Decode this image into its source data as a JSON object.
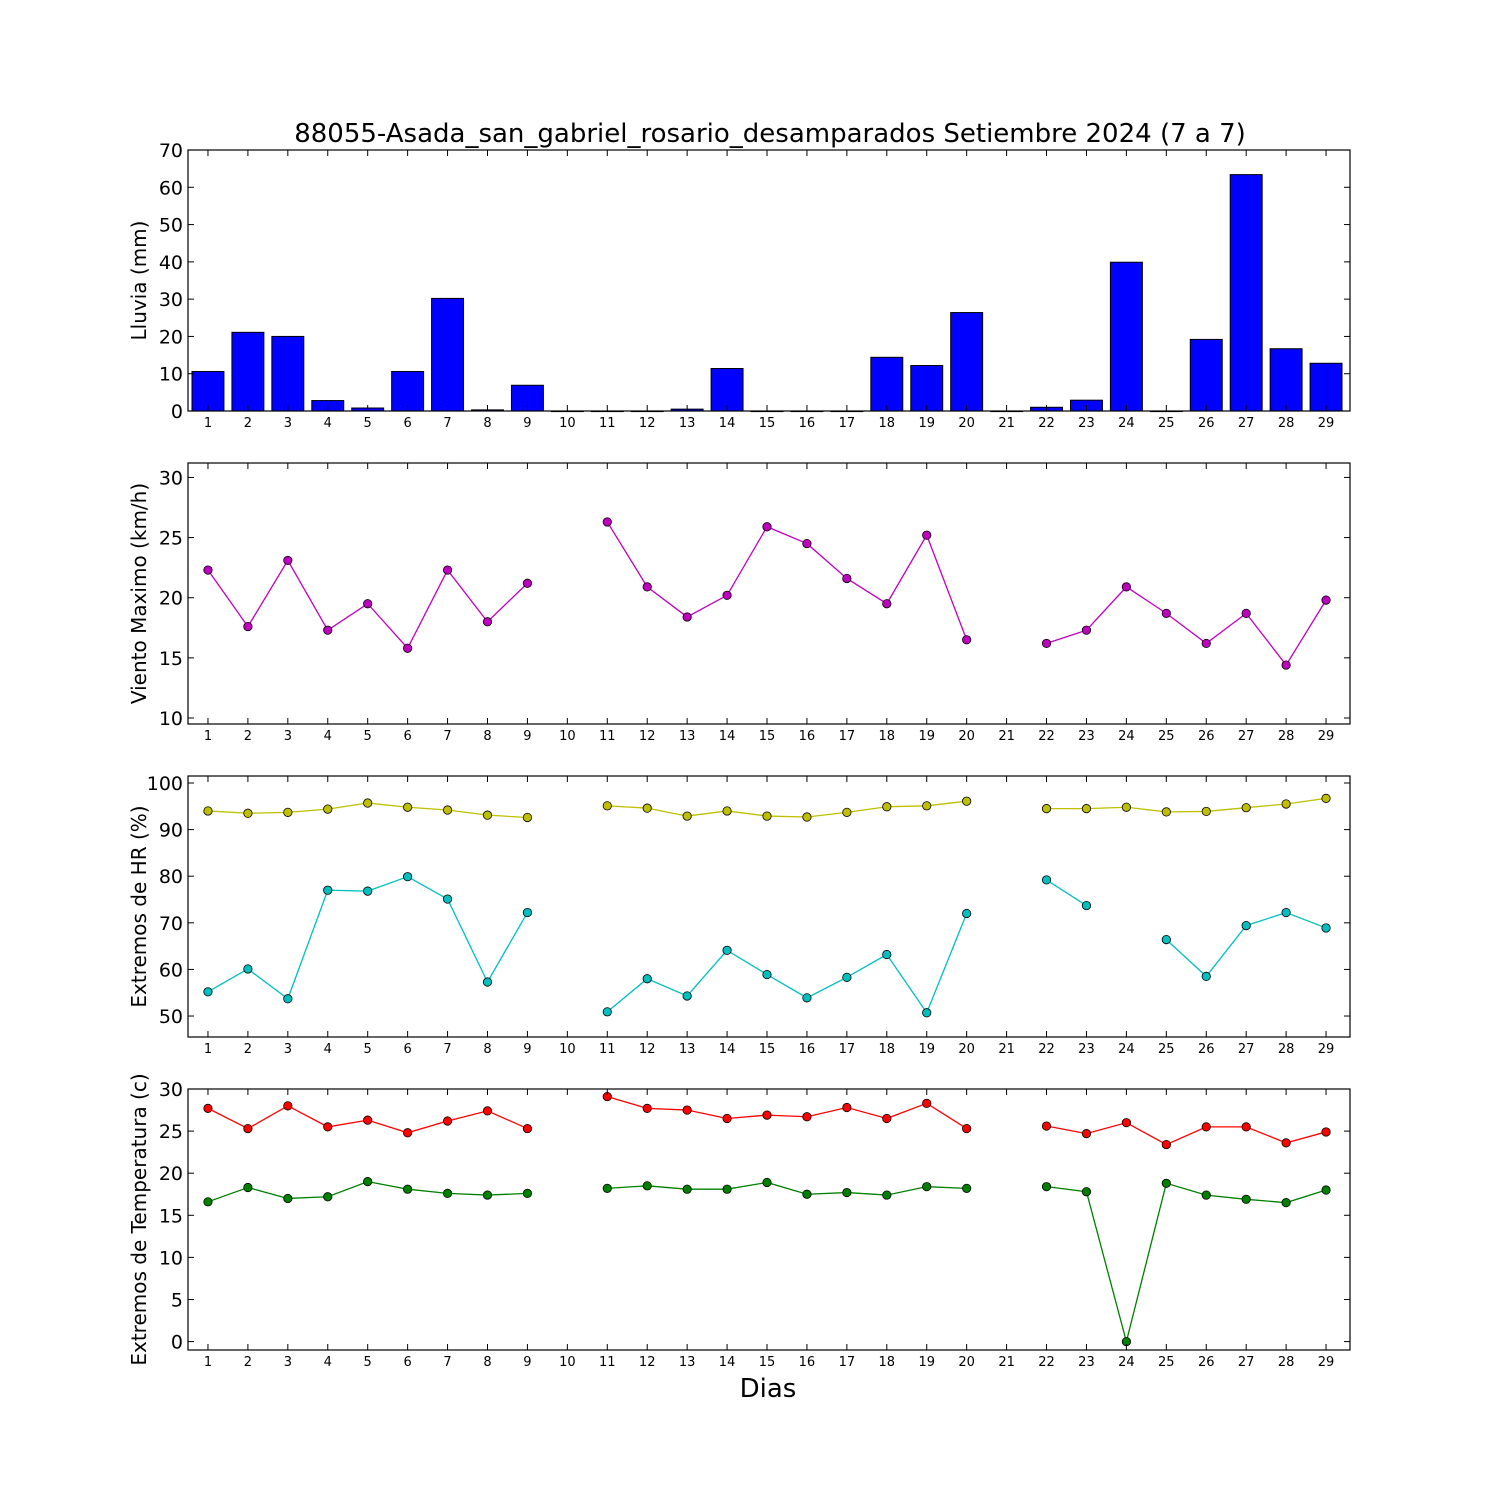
{
  "title": "88055-Asada_san_gabriel_rosario_desamparados Setiembre 2024  (7 a 7)",
  "xlabel": "Dias",
  "colors": {
    "rain": "#0000ff",
    "wind": "#bf00bf",
    "hr_max": "#bfbf00",
    "hr_min": "#00bfbf",
    "temp_max": "#ff0000",
    "temp_min": "#008000"
  },
  "chart_data": [
    {
      "type": "bar",
      "ylabel": "Lluvia (mm)",
      "ylim": [
        0,
        70
      ],
      "yticks": [
        0,
        10,
        20,
        30,
        40,
        50,
        60,
        70
      ],
      "xticks": [
        1,
        2,
        3,
        4,
        5,
        6,
        7,
        8,
        9,
        10,
        11,
        12,
        13,
        14,
        15,
        16,
        17,
        18,
        19,
        20,
        21,
        22,
        23,
        24,
        25,
        26,
        27,
        28,
        29
      ],
      "x": [
        1,
        2,
        3,
        4,
        5,
        6,
        7,
        8,
        9,
        10,
        11,
        12,
        13,
        14,
        15,
        16,
        17,
        18,
        19,
        20,
        21,
        22,
        23,
        24,
        25,
        26,
        27,
        28,
        29
      ],
      "series": [
        {
          "color_key": "rain",
          "values": [
            10.6,
            21.1,
            20.0,
            2.8,
            0.8,
            10.6,
            30.2,
            0.3,
            6.9,
            0,
            0,
            0,
            0.5,
            11.4,
            0,
            0,
            0,
            14.4,
            12.2,
            26.4,
            0,
            1.0,
            2.9,
            39.9,
            0,
            19.2,
            63.4,
            16.7,
            12.8
          ]
        }
      ]
    },
    {
      "type": "line",
      "ylabel": "Viento Maximo (km/h)",
      "ylim": [
        9.5,
        31.2
      ],
      "yticks": [
        10,
        15,
        20,
        25,
        30
      ],
      "xticks": [
        1,
        2,
        3,
        4,
        5,
        6,
        7,
        8,
        9,
        10,
        11,
        12,
        13,
        14,
        15,
        16,
        17,
        18,
        19,
        20,
        21,
        22,
        23,
        24,
        25,
        26,
        27,
        28,
        29
      ],
      "x": [
        1,
        2,
        3,
        4,
        5,
        6,
        7,
        8,
        9,
        10,
        11,
        12,
        13,
        14,
        15,
        16,
        17,
        18,
        19,
        20,
        21,
        22,
        23,
        24,
        25,
        26,
        27,
        28,
        29
      ],
      "series": [
        {
          "color_key": "wind",
          "values": [
            22.3,
            17.6,
            23.1,
            17.3,
            19.5,
            15.8,
            22.3,
            18.0,
            21.2,
            null,
            26.3,
            20.9,
            18.4,
            20.2,
            25.9,
            24.5,
            21.6,
            19.5,
            25.2,
            16.5,
            null,
            16.2,
            17.3,
            20.9,
            18.7,
            16.2,
            18.7,
            14.4,
            19.8
          ]
        }
      ]
    },
    {
      "type": "line",
      "ylabel": "Extremos de HR (%)",
      "ylim": [
        45.5,
        101.5
      ],
      "yticks": [
        50,
        60,
        70,
        80,
        90,
        100
      ],
      "xticks": [
        1,
        2,
        3,
        4,
        5,
        6,
        7,
        8,
        9,
        10,
        11,
        12,
        13,
        14,
        15,
        16,
        17,
        18,
        19,
        20,
        21,
        22,
        23,
        24,
        25,
        26,
        27,
        28,
        29
      ],
      "x": [
        1,
        2,
        3,
        4,
        5,
        6,
        7,
        8,
        9,
        10,
        11,
        12,
        13,
        14,
        15,
        16,
        17,
        18,
        19,
        20,
        21,
        22,
        23,
        24,
        25,
        26,
        27,
        28,
        29
      ],
      "series": [
        {
          "color_key": "hr_max",
          "values": [
            94.0,
            93.5,
            93.7,
            94.4,
            95.7,
            94.8,
            94.2,
            93.1,
            92.6,
            null,
            95.1,
            94.6,
            92.9,
            94.0,
            92.9,
            92.7,
            93.7,
            94.9,
            95.1,
            96.1,
            null,
            94.5,
            94.5,
            94.8,
            93.8,
            93.9,
            94.7,
            95.5,
            96.7
          ]
        },
        {
          "color_key": "hr_min",
          "values": [
            55.2,
            60.1,
            53.7,
            77.0,
            76.8,
            79.9,
            75.1,
            57.3,
            72.2,
            null,
            50.9,
            58.0,
            54.3,
            64.1,
            58.9,
            53.9,
            58.3,
            63.2,
            50.7,
            72.0,
            null,
            79.2,
            73.7,
            null,
            66.4,
            58.5,
            69.4,
            72.2,
            68.9
          ]
        }
      ]
    },
    {
      "type": "line",
      "ylabel": "Extremos de Temperatura (c)",
      "ylim": [
        -1,
        30
      ],
      "yticks": [
        0,
        5,
        10,
        15,
        20,
        25,
        30
      ],
      "xticks": [
        1,
        2,
        3,
        4,
        5,
        6,
        7,
        8,
        9,
        10,
        11,
        12,
        13,
        14,
        15,
        16,
        17,
        18,
        19,
        20,
        21,
        22,
        23,
        24,
        25,
        26,
        27,
        28,
        29
      ],
      "x": [
        1,
        2,
        3,
        4,
        5,
        6,
        7,
        8,
        9,
        10,
        11,
        12,
        13,
        14,
        15,
        16,
        17,
        18,
        19,
        20,
        21,
        22,
        23,
        24,
        25,
        26,
        27,
        28,
        29
      ],
      "series": [
        {
          "color_key": "temp_max",
          "values": [
            27.7,
            25.3,
            28.0,
            25.5,
            26.3,
            24.8,
            26.2,
            27.4,
            25.3,
            null,
            29.1,
            27.7,
            27.5,
            26.5,
            26.9,
            26.7,
            27.8,
            26.5,
            28.3,
            25.3,
            null,
            25.6,
            24.7,
            26.0,
            23.4,
            25.5,
            25.5,
            23.6,
            24.9
          ]
        },
        {
          "color_key": "temp_min",
          "values": [
            16.6,
            18.3,
            17.0,
            17.2,
            19.0,
            18.1,
            17.6,
            17.4,
            17.6,
            null,
            18.2,
            18.5,
            18.1,
            18.1,
            18.9,
            17.5,
            17.7,
            17.4,
            18.4,
            18.2,
            null,
            18.4,
            17.8,
            0.0,
            18.8,
            17.4,
            16.9,
            16.5,
            18.0
          ]
        }
      ]
    }
  ]
}
